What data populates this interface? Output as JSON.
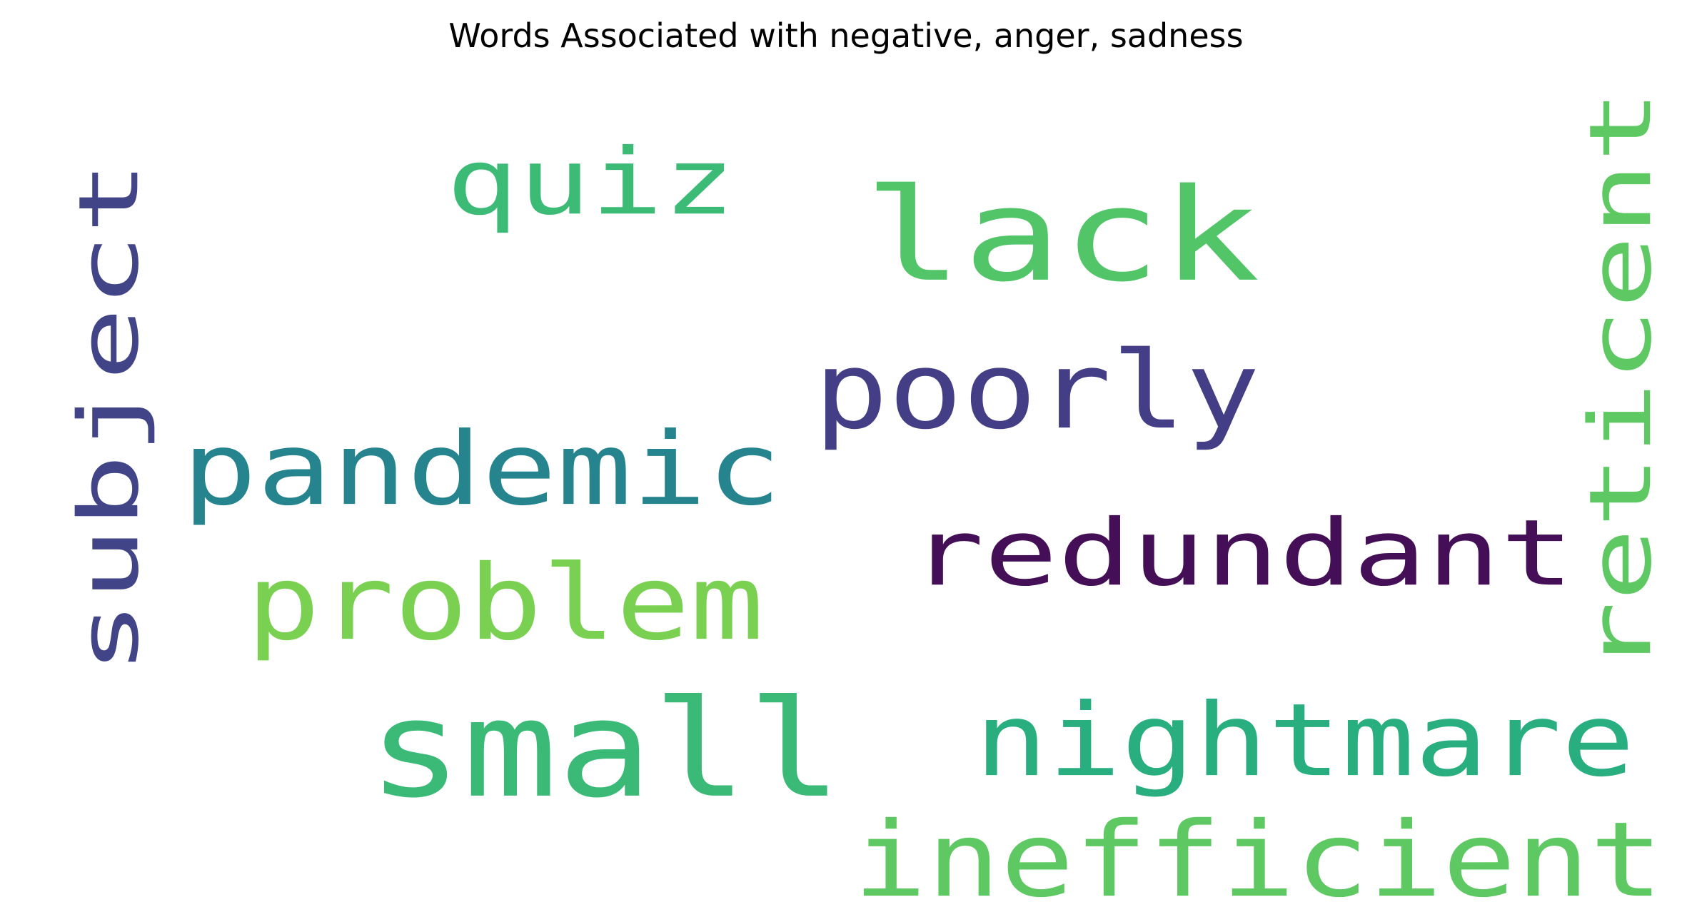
{
  "chart_data": {
    "type": "wordcloud",
    "title": "Words Associated with negative, anger, sadness",
    "words": [
      {
        "text": "lack",
        "color": "#52c569"
      },
      {
        "text": "small",
        "color": "#3aba76"
      },
      {
        "text": "inefficient",
        "color": "#5ec962"
      },
      {
        "text": "nightmare",
        "color": "#29af7f"
      },
      {
        "text": "redundant",
        "color": "#440f56"
      },
      {
        "text": "poorly",
        "color": "#433e85"
      },
      {
        "text": "pandemic",
        "color": "#25848e"
      },
      {
        "text": "problem",
        "color": "#7ad151"
      },
      {
        "text": "quiz",
        "color": "#3bbb75"
      },
      {
        "text": "subject",
        "color": "#414487"
      },
      {
        "text": "reticent",
        "color": "#5ec962"
      }
    ]
  }
}
